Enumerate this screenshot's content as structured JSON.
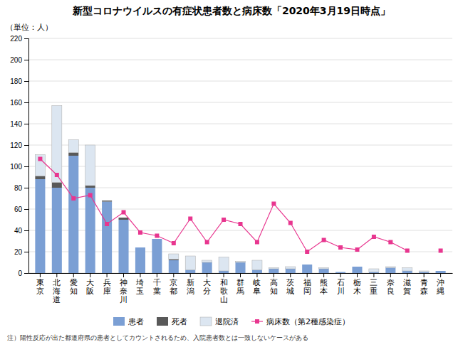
{
  "chart_data": {
    "type": "bar",
    "stacked": true,
    "title": "新型コロナウイルスの有症状患者数と病床数「2020年3月19日時点」",
    "y_label": "（単位：人）",
    "annotations": [
      "注）陽性反応が出た都道府県の患者としてカウントされるため、入院患者数とは一致しないケースがある"
    ],
    "categories": [
      "東\n京",
      "北\n海\n道",
      "愛\n知",
      "大\n阪",
      "兵\n庫",
      "神\n奈\n川",
      "埼\n玉",
      "千\n葉",
      "京\n都",
      "新\n潟",
      "大\n分",
      "和\n歌\n山",
      "群\n馬",
      "岐\n阜",
      "高\n知",
      "茨\n城",
      "福\n岡",
      "熊\n本",
      "石\n川",
      "栃\n木",
      "三\n重",
      "奈\n良",
      "滋\n賀",
      "青\n森",
      "沖\n縄"
    ],
    "series": [
      {
        "name": "患者",
        "type": "bar",
        "color": "#7b9fd4",
        "values": [
          88,
          80,
          110,
          80,
          67,
          50,
          24,
          32,
          12,
          3,
          10,
          2,
          10,
          3,
          4,
          4,
          8,
          4,
          1,
          6,
          1,
          5,
          2,
          1,
          2
        ]
      },
      {
        "name": "死者",
        "type": "bar",
        "color": "#595959",
        "values": [
          3,
          5,
          3,
          2,
          1,
          2,
          0,
          0,
          1,
          0,
          0,
          0,
          0,
          0,
          0,
          0,
          0,
          0,
          0,
          0,
          0,
          0,
          0,
          0,
          0
        ]
      },
      {
        "name": "退院済",
        "type": "bar",
        "color": "#dce6f1",
        "values": [
          20,
          72,
          12,
          38,
          0,
          0,
          0,
          0,
          5,
          13,
          2,
          13,
          1,
          9,
          1,
          2,
          0,
          1,
          0,
          0,
          3,
          1,
          3,
          1,
          0
        ]
      },
      {
        "name": "病床数（第2種感染症）",
        "type": "line",
        "marker": "square",
        "color": "#e8368f",
        "values": [
          107,
          92,
          70,
          73,
          46,
          57,
          38,
          35,
          28,
          51,
          29,
          50,
          46,
          29,
          65,
          47,
          20,
          31,
          24,
          22,
          34,
          29,
          21,
          null,
          21
        ]
      }
    ],
    "ylim": [
      0,
      220
    ],
    "yticks": [
      0,
      20,
      40,
      60,
      80,
      100,
      120,
      140,
      160,
      180,
      200,
      220
    ],
    "grid": true,
    "legend": "bottom"
  }
}
